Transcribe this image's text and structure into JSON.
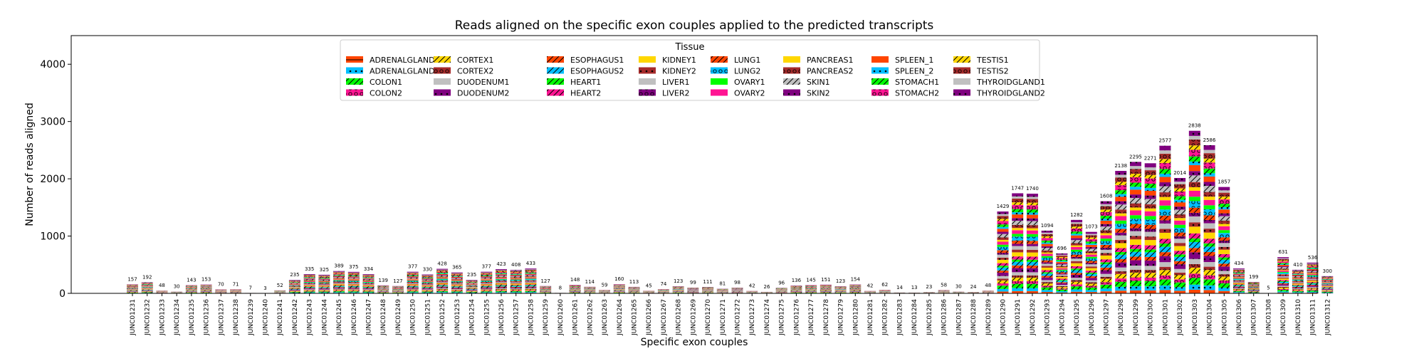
{
  "chart_data": {
    "type": "bar",
    "stacked": true,
    "title": "Reads aligned on the specific exon couples applied to the predicted transcripts",
    "xlabel": "Specific exon couples",
    "ylabel": "Number of reads aligned",
    "ylim": [
      0,
      4500
    ],
    "yticks": [
      0,
      1000,
      2000,
      3000,
      4000
    ],
    "legend": {
      "title": "Tissue",
      "placement": "upper-center",
      "ncol": 8,
      "entries": [
        {
          "name": "ADRENALGLAND1",
          "color": "#ff4500",
          "hatch": "-"
        },
        {
          "name": "ADRENALGLAND2",
          "color": "#00bfff",
          "hatch": "."
        },
        {
          "name": "COLON1",
          "color": "#00ff00",
          "hatch": "/"
        },
        {
          "name": "COLON2",
          "color": "#ff1493",
          "hatch": "o"
        },
        {
          "name": "CORTEX1",
          "color": "#ffd700",
          "hatch": "/"
        },
        {
          "name": "CORTEX2",
          "color": "#a52a2a",
          "hatch": "o"
        },
        {
          "name": "DUODENUM1",
          "color": "#c0c0c0",
          "hatch": ""
        },
        {
          "name": "DUODENUM2",
          "color": "#800080",
          "hatch": "."
        },
        {
          "name": "ESOPHAGUS1",
          "color": "#ff4500",
          "hatch": "/"
        },
        {
          "name": "ESOPHAGUS2",
          "color": "#00bfff",
          "hatch": "/"
        },
        {
          "name": "HEART1",
          "color": "#00ff00",
          "hatch": "/"
        },
        {
          "name": "HEART2",
          "color": "#ff1493",
          "hatch": "/"
        },
        {
          "name": "KIDNEY1",
          "color": "#ffd700",
          "hatch": ""
        },
        {
          "name": "KIDNEY2",
          "color": "#a52a2a",
          "hatch": "."
        },
        {
          "name": "LIVER1",
          "color": "#c0c0c0",
          "hatch": ""
        },
        {
          "name": "LIVER2",
          "color": "#800080",
          "hatch": "o"
        },
        {
          "name": "LUNG1",
          "color": "#ff4500",
          "hatch": "/"
        },
        {
          "name": "LUNG2",
          "color": "#00bfff",
          "hatch": "o"
        },
        {
          "name": "OVARY1",
          "color": "#00ff00",
          "hatch": ""
        },
        {
          "name": "OVARY2",
          "color": "#ff1493",
          "hatch": ""
        },
        {
          "name": "PANCREAS1",
          "color": "#ffd700",
          "hatch": ""
        },
        {
          "name": "PANCREAS2",
          "color": "#a52a2a",
          "hatch": "o"
        },
        {
          "name": "SKIN1",
          "color": "#c0c0c0",
          "hatch": "/"
        },
        {
          "name": "SKIN2",
          "color": "#800080",
          "hatch": "."
        },
        {
          "name": "SPLEEN_1",
          "color": "#ff4500",
          "hatch": ""
        },
        {
          "name": "SPLEEN_2",
          "color": "#00bfff",
          "hatch": "."
        },
        {
          "name": "STOMACH1",
          "color": "#00ff00",
          "hatch": "/"
        },
        {
          "name": "STOMACH2",
          "color": "#ff1493",
          "hatch": "o"
        },
        {
          "name": "TESTIS1",
          "color": "#ffd700",
          "hatch": "/"
        },
        {
          "name": "TESTIS2",
          "color": "#a52a2a",
          "hatch": "o"
        },
        {
          "name": "THYROIDGLAND1",
          "color": "#c0c0c0",
          "hatch": ""
        },
        {
          "name": "THYROIDGLAND2",
          "color": "#800080",
          "hatch": "."
        }
      ]
    },
    "categories": [
      "JUNC01231",
      "JUNC01232",
      "JUNC01233",
      "JUNC01234",
      "JUNC01235",
      "JUNC01236",
      "JUNC01237",
      "JUNC01238",
      "JUNC01239",
      "JUNC01240",
      "JUNC01241",
      "JUNC01242",
      "JUNC01243",
      "JUNC01244",
      "JUNC01245",
      "JUNC01246",
      "JUNC01247",
      "JUNC01248",
      "JUNC01249",
      "JUNC01250",
      "JUNC01251",
      "JUNC01252",
      "JUNC01253",
      "JUNC01254",
      "JUNC01255",
      "JUNC01256",
      "JUNC01257",
      "JUNC01258",
      "JUNC01259",
      "JUNC01260",
      "JUNC01261",
      "JUNC01262",
      "JUNC01263",
      "JUNC01264",
      "JUNC01265",
      "JUNC01266",
      "JUNC01267",
      "JUNC01268",
      "JUNC01269",
      "JUNC01270",
      "JUNC01271",
      "JUNC01272",
      "JUNC01273",
      "JUNC01274",
      "JUNC01275",
      "JUNC01276",
      "JUNC01277",
      "JUNC01278",
      "JUNC01279",
      "JUNC01280",
      "JUNC01281",
      "JUNC01282",
      "JUNC01283",
      "JUNC01284",
      "JUNC01285",
      "JUNC01286",
      "JUNC01287",
      "JUNC01288",
      "JUNC01289",
      "JUNC01290",
      "JUNC01291",
      "JUNC01292",
      "JUNC01293",
      "JUNC01294",
      "JUNC01295",
      "JUNC01296",
      "JUNC01297",
      "JUNC01298",
      "JUNC01299",
      "JUNC01300",
      "JUNC01301",
      "JUNC01302",
      "JUNC01303",
      "JUNC01304",
      "JUNC01305",
      "JUNC01306",
      "JUNC01307",
      "JUNC01308",
      "JUNC01309",
      "JUNC01310",
      "JUNC01311",
      "JUNC01312"
    ],
    "totals": [
      157,
      192,
      48,
      30,
      143,
      153,
      70,
      71,
      7,
      3,
      52,
      235,
      335,
      325,
      389,
      375,
      334,
      139,
      127,
      377,
      330,
      428,
      365,
      235,
      377,
      423,
      408,
      433,
      127,
      8,
      148,
      114,
      59,
      160,
      113,
      45,
      74,
      123,
      99,
      111,
      81,
      98,
      42,
      26,
      96,
      136,
      145,
      151,
      123,
      154,
      42,
      62,
      14,
      13,
      23,
      58,
      30,
      24,
      48,
      1429,
      1747,
      1740,
      1094,
      696,
      1282,
      1073,
      1608,
      2138,
      2295,
      2271,
      2577,
      2014,
      2838,
      2586,
      1857,
      434,
      199,
      5,
      631,
      410,
      536,
      300
    ]
  }
}
